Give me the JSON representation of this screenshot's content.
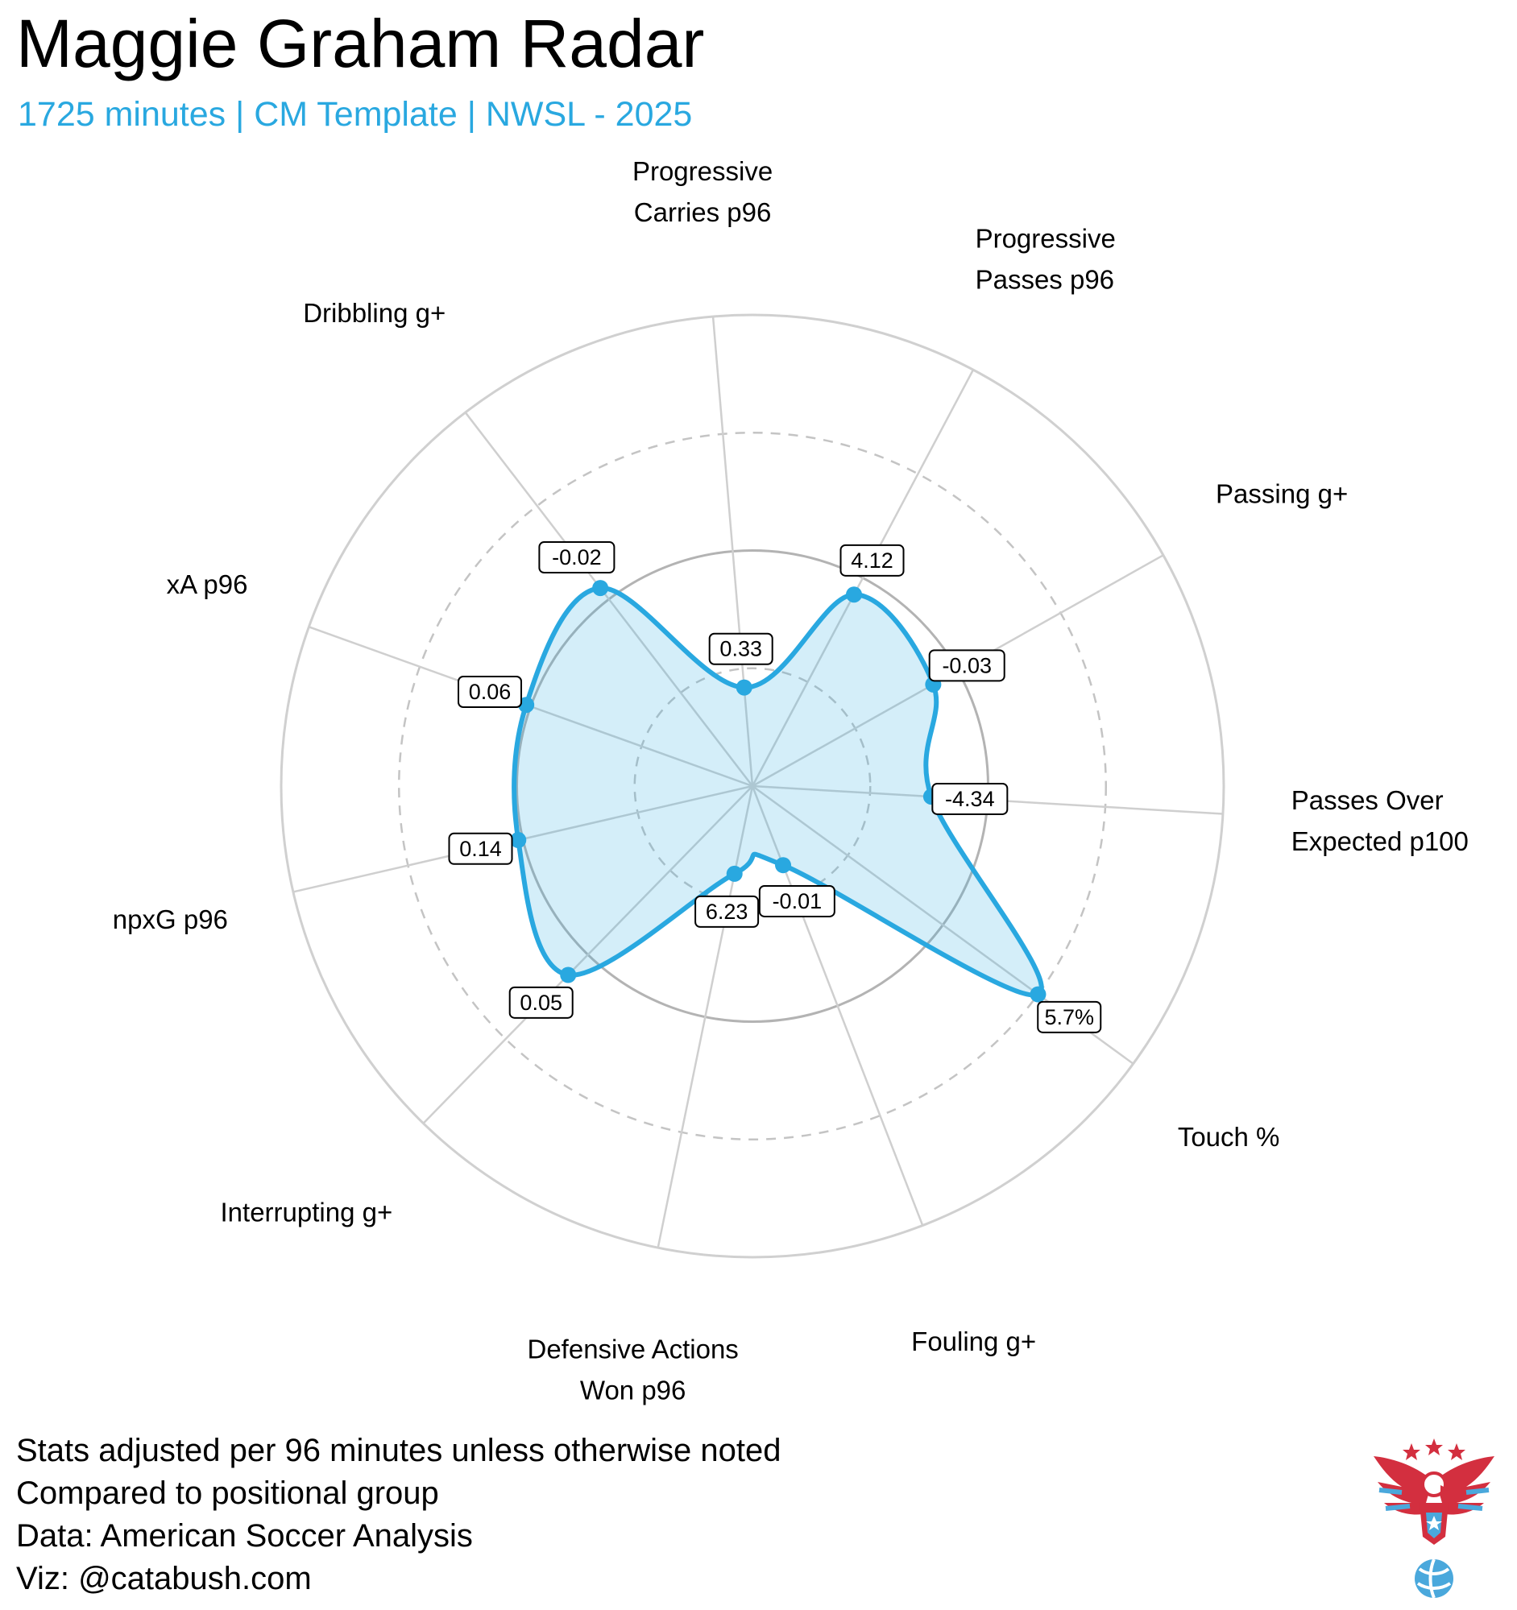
{
  "title": "Maggie Graham Radar",
  "subtitle": "1725 minutes | CM Template | NWSL - 2025",
  "accent_color": "#29a8e0",
  "notes": [
    "Stats adjusted per 96 minutes unless otherwise noted",
    "Compared to positional group",
    "Data: American Soccer Analysis",
    "Viz: @catabush.com"
  ],
  "logo": {
    "icon": "eagle-soccer-logo"
  },
  "chart_data": {
    "type": "radar",
    "scale": "percentile",
    "range": [
      0,
      100
    ],
    "rings": [
      25,
      50,
      75,
      100
    ],
    "grid": true,
    "series": [
      {
        "metrics": [
          {
            "label": [
              "Progressive",
              "Carries p96"
            ],
            "value": "0.33",
            "percentile": 21
          },
          {
            "label": [
              "Progressive",
              "Passes p96"
            ],
            "value": "4.12",
            "percentile": 46
          },
          {
            "label": [
              "Passing g+"
            ],
            "value": "-0.03",
            "percentile": 44
          },
          {
            "label": [
              "Passes Over",
              "Expected p100"
            ],
            "value": "-4.34",
            "percentile": 38
          },
          {
            "label": [
              "Touch %"
            ],
            "value": "5.7%",
            "percentile": 75
          },
          {
            "label": [
              "Fouling g+"
            ],
            "value": "-0.01",
            "percentile": 18
          },
          {
            "label": [
              "Defensive Actions",
              "Won p96"
            ],
            "value": "6.23",
            "percentile": 19
          },
          {
            "label": [
              "Interrupting g+"
            ],
            "value": "0.05",
            "percentile": 56
          },
          {
            "label": [
              "npxG p96"
            ],
            "value": "0.14",
            "percentile": 51
          },
          {
            "label": [
              "xA p96"
            ],
            "value": "0.06",
            "percentile": 51
          },
          {
            "label": [
              "Dribbling g+"
            ],
            "value": "-0.02",
            "percentile": 53
          }
        ]
      }
    ]
  }
}
